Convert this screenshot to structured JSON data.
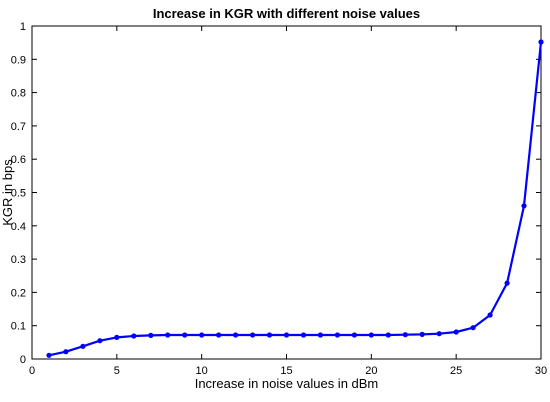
{
  "chart_data": {
    "type": "line",
    "title": "Increase in KGR with different noise values",
    "xlabel": "Increase in noise values in dBm",
    "ylabel": "KGR in bps",
    "xlim": [
      0,
      30
    ],
    "ylim": [
      0,
      1
    ],
    "xticks": [
      "0",
      "5",
      "10",
      "15",
      "20",
      "25",
      "30"
    ],
    "yticks": [
      "0",
      "0.1",
      "0.2",
      "0.3",
      "0.4",
      "0.5",
      "0.6",
      "0.7",
      "0.8",
      "0.9",
      "1"
    ],
    "grid": false,
    "series": [
      {
        "color": "#0000ff",
        "marker": "dot",
        "x": [
          1,
          2,
          3,
          4,
          5,
          6,
          7,
          8,
          9,
          10,
          11,
          12,
          13,
          14,
          15,
          16,
          17,
          18,
          19,
          20,
          21,
          22,
          23,
          24,
          25,
          26,
          27,
          28,
          29,
          30
        ],
        "y": [
          0.011,
          0.022,
          0.038,
          0.055,
          0.065,
          0.069,
          0.071,
          0.072,
          0.072,
          0.072,
          0.072,
          0.072,
          0.072,
          0.072,
          0.072,
          0.072,
          0.072,
          0.072,
          0.072,
          0.072,
          0.072,
          0.073,
          0.074,
          0.076,
          0.081,
          0.094,
          0.132,
          0.228,
          0.46,
          0.952
        ]
      }
    ]
  }
}
